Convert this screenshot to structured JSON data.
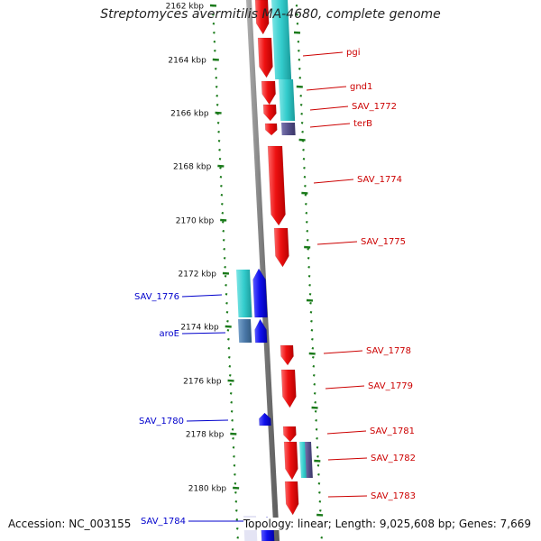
{
  "title": "Streptomyces avermitilis MA-4680, complete genome",
  "footer": {
    "accession": "Accession: NC_003155",
    "summary": "Topology: linear; Length: 9,025,608 bp; Genes: 7,669"
  },
  "colors": {
    "tick": "#1a7a1a",
    "backbone": "#8a8a8a",
    "forward_gene": "#ee1111",
    "reverse_gene": "#1111ee",
    "cds_cyan": "#33cccc",
    "cds_steel": "#4a78a8",
    "cds_purple": "#55508a",
    "forward_label": "#cc0000",
    "reverse_label": "#0000cc"
  },
  "scale_labels": [
    "2162 kbp",
    "2164 kbp",
    "2166 kbp",
    "2168 kbp",
    "2170 kbp",
    "2172 kbp",
    "2174 kbp",
    "2176 kbp",
    "2178 kbp",
    "2180 kbp"
  ],
  "forward_genes": [
    {
      "label": "pgi"
    },
    {
      "label": "gnd1"
    },
    {
      "label": "SAV_1772"
    },
    {
      "label": "terB"
    },
    {
      "label": "SAV_1774"
    },
    {
      "label": "SAV_1775"
    },
    {
      "label": "SAV_1778"
    },
    {
      "label": "SAV_1779"
    },
    {
      "label": "SAV_1781"
    },
    {
      "label": "SAV_1782"
    },
    {
      "label": "SAV_1783"
    }
  ],
  "reverse_genes": [
    {
      "label": "SAV_1776"
    },
    {
      "label": "aroE"
    },
    {
      "label": "SAV_1780"
    },
    {
      "label": "SAV_1784"
    }
  ]
}
